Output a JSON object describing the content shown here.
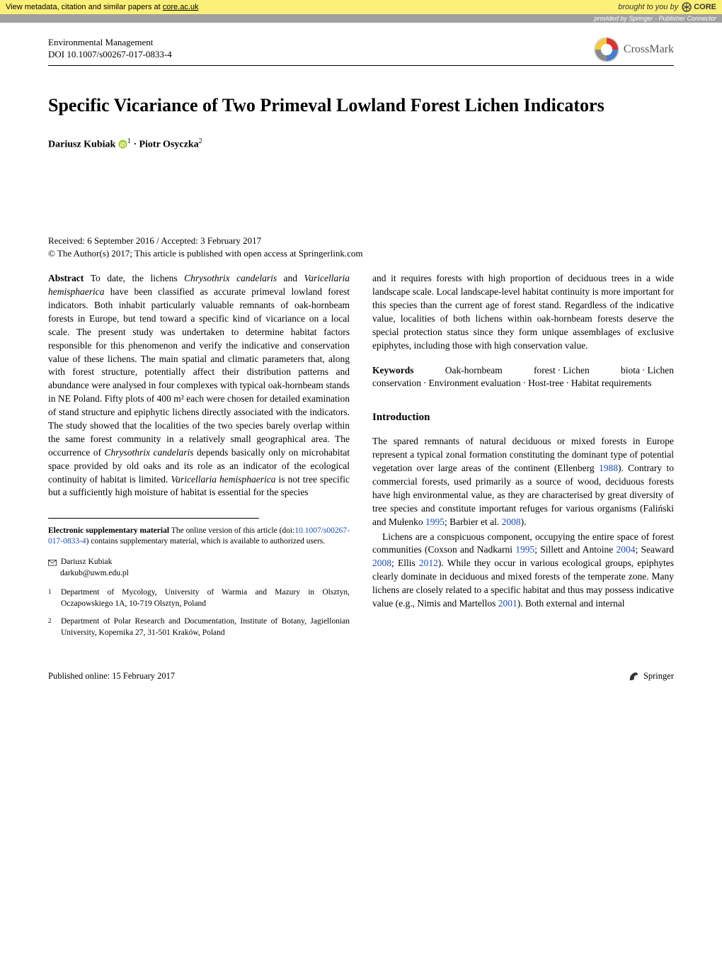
{
  "core_banner": {
    "text_prefix": "View metadata, citation and similar papers at ",
    "link_text": "core.ac.uk",
    "brought_by": "brought to you by",
    "logo_text": "CORE"
  },
  "provided_banner": {
    "text": "provided by Springer - Publisher Connector"
  },
  "header": {
    "journal_name": "Environmental Management",
    "doi": "DOI 10.1007/s00267-017-0833-4",
    "crossmark_label": "CrossMark"
  },
  "title": "Specific Vicariance of Two Primeval Lowland Forest Lichen Indicators",
  "authors": [
    {
      "name": "Dariusz Kubiak",
      "affil": "1",
      "orcid": true
    },
    {
      "name": "Piotr Osyczka",
      "affil": "2",
      "orcid": false
    }
  ],
  "dates": "Received: 6 September 2016 / Accepted: 3 February 2017",
  "copyright": "© The Author(s) 2017; This article is published with open access at Springerlink.com",
  "abstract": {
    "label": "Abstract",
    "text_left": "To date, the lichens Chrysothrix candelaris and Varicellaria hemisphaerica have been classified as accurate primeval lowland forest indicators. Both inhabit particularly valuable remnants of oak-hornbeam forests in Europe, but tend toward a specific kind of vicariance on a local scale. The present study was undertaken to determine habitat factors responsible for this phenomenon and verify the indicative and conservation value of these lichens. The main spatial and climatic parameters that, along with forest structure, potentially affect their distribution patterns and abundance were analysed in four complexes with typical oak-hornbeam stands in NE Poland. Fifty plots of 400 m² each were chosen for detailed examination of stand structure and epiphytic lichens directly associated with the indicators. The study showed that the localities of the two species barely overlap within the same forest community in a relatively small geographical area. The occurrence of Chrysothrix candelaris depends basically only on microhabitat space provided by old oaks and its role as an indicator of the ecological continuity of habitat is limited. Varicellaria hemisphaerica is not tree specific but a sufficiently high moisture of habitat is essential for the species",
    "text_right": "and it requires forests with high proportion of deciduous trees in a wide landscape scale. Local landscape-level habitat continuity is more important for this species than the current age of forest stand. Regardless of the indicative value, localities of both lichens within oak-hornbeam forests deserve the special protection status since they form unique assemblages of exclusive epiphytes, including those with high conservation value."
  },
  "keywords": {
    "label": "Keywords",
    "items": [
      "Oak-hornbeam forest",
      "Lichen biota",
      "Lichen conservation",
      "Environment evaluation",
      "Host-tree",
      "Habitat requirements"
    ]
  },
  "introduction": {
    "heading": "Introduction",
    "para1": "The spared remnants of natural deciduous or mixed forests in Europe represent a typical zonal formation constituting the dominant type of potential vegetation over large areas of the continent (Ellenberg 1988). Contrary to commercial forests, used primarily as a source of wood, deciduous forests have high environmental value, as they are characterised by great diversity of tree species and constitute important refuges for various organisms (Faliński and Mułenko 1995; Barbier et al. 2008).",
    "para2": "Lichens are a conspicuous component, occupying the entire space of forest communities (Coxson and Nadkarni 1995; Sillett and Antoine 2004; Seaward 2008; Ellis 2012). While they occur in various ecological groups, epiphytes clearly dominate in deciduous and mixed forests of the temperate zone. Many lichens are closely related to a specific habitat and thus may possess indicative value (e.g., Nimis and Martellos 2001). Both external and internal"
  },
  "esm": {
    "label": "Electronic supplementary material",
    "text_before": "The online version of this article (doi:",
    "doi_link": "10.1007/s00267-017-0833-4",
    "text_after": ") contains supplementary material, which is available to authorized users."
  },
  "correspondence": {
    "name": "Dariusz Kubiak",
    "email": "darkub@uwm.edu.pl"
  },
  "affiliations": [
    {
      "num": "1",
      "text": "Department of Mycology, University of Warmia and Mazury in Olsztyn, Oczapowskiego 1A, 10-719 Olsztyn, Poland"
    },
    {
      "num": "2",
      "text": "Department of Polar Research and Documentation, Institute of Botany, Jagiellonian University, Kopernika 27, 31-501 Kraków, Poland"
    }
  ],
  "footer": {
    "published": "Published online: 15 February 2017",
    "springer": "Springer"
  },
  "colors": {
    "core_bg": "#fdf07a",
    "provided_bg": "#a0a0a0",
    "link_blue": "#1a4db3",
    "crossmark_red": "#d93434",
    "crossmark_yellow": "#f5c842",
    "crossmark_blue": "#4a7dc9",
    "crossmark_grey": "#8a8a8a",
    "orcid_green": "#a6ce39"
  }
}
